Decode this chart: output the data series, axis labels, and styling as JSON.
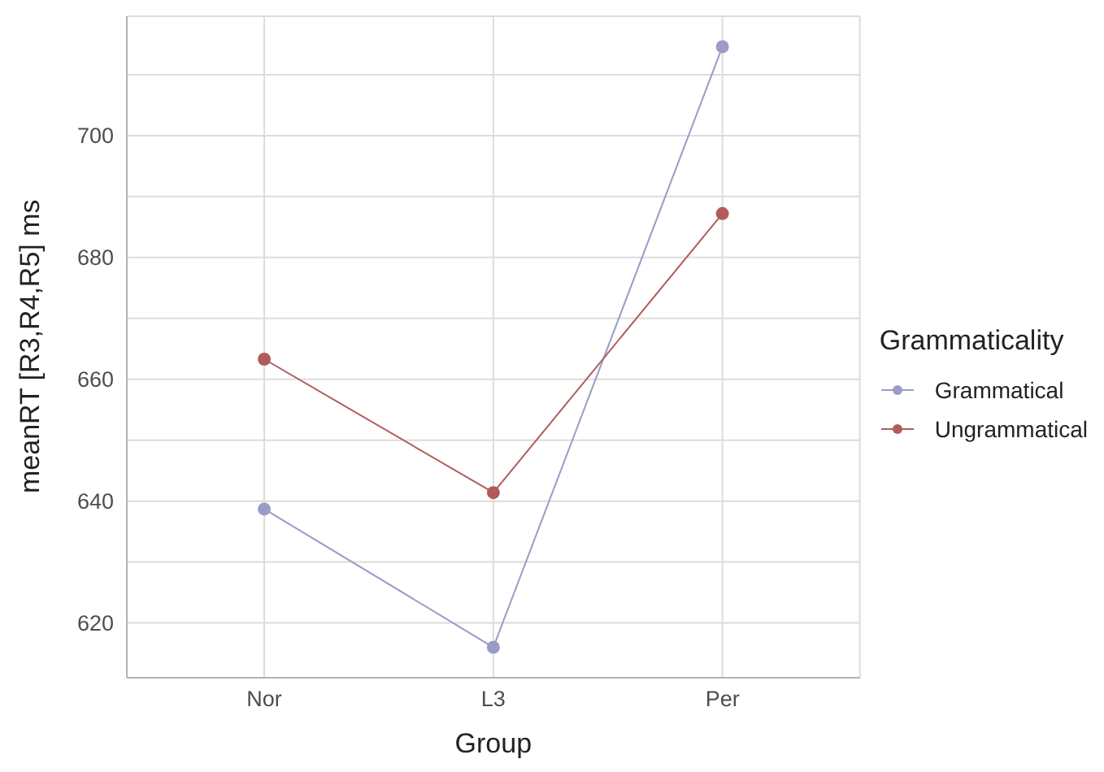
{
  "chart_data": {
    "type": "line",
    "xlabel": "Group",
    "ylabel": "meanRT [R3,R4,R5] ms",
    "legend_title": "Grammaticality",
    "categories": [
      "Nor",
      "L3",
      "Per"
    ],
    "series": [
      {
        "name": "Grammatical",
        "color": "#9b9bc8",
        "values": [
          638.7,
          616.0,
          714.6
        ]
      },
      {
        "name": "Ungrammatical",
        "color": "#b25b5b",
        "values": [
          663.3,
          641.4,
          687.2
        ]
      }
    ],
    "ylim": [
      611,
      719.6
    ],
    "yticks": [
      620,
      {
        "value": 630,
        "label": null
      },
      640,
      {
        "value": 650,
        "label": null
      },
      660,
      {
        "value": 670,
        "label": null
      },
      680,
      {
        "value": 690,
        "label": null
      },
      700,
      {
        "value": 710,
        "label": null
      }
    ],
    "grid": true,
    "legend": "right",
    "marker": "circle",
    "line_style": "solid"
  }
}
